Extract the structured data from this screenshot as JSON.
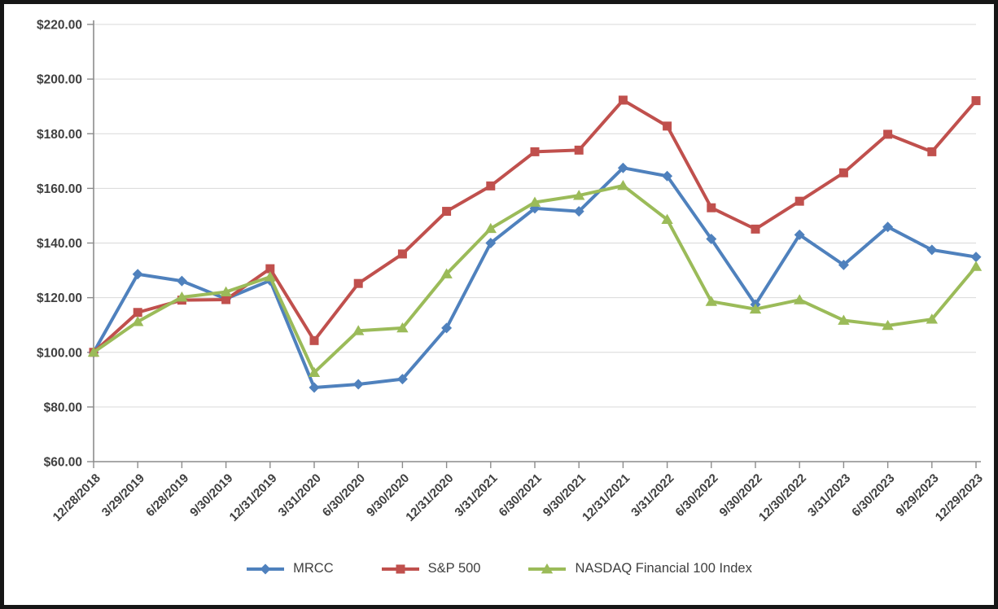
{
  "chart_data": {
    "type": "line",
    "title": "",
    "categories": [
      "12/28/2018",
      "3/29/2019",
      "6/28/2019",
      "9/30/2019",
      "12/31/2019",
      "3/31/2020",
      "6/30/2020",
      "9/30/2020",
      "12/31/2020",
      "3/31/2021",
      "6/30/2021",
      "9/30/2021",
      "12/31/2021",
      "3/31/2022",
      "6/30/2022",
      "9/30/2022",
      "12/30/2022",
      "3/31/2023",
      "6/30/2023",
      "9/29/2023",
      "12/29/2023"
    ],
    "series": [
      {
        "name": "MRCC",
        "color": "#4F81BD",
        "marker": "diamond",
        "values": [
          100.0,
          128.6,
          126.1,
          119.6,
          126.3,
          87.1,
          88.3,
          90.2,
          108.9,
          140.0,
          152.7,
          151.6,
          167.5,
          164.5,
          141.5,
          117.5,
          143.0,
          132.0,
          145.9,
          137.5,
          134.9
        ]
      },
      {
        "name": "S&P 500",
        "color": "#C0504D",
        "marker": "square",
        "values": [
          100.0,
          114.6,
          119.1,
          119.3,
          130.6,
          104.3,
          125.2,
          136.0,
          151.6,
          160.9,
          173.4,
          174.0,
          192.3,
          182.8,
          152.9,
          145.1,
          155.3,
          165.7,
          179.8,
          173.4,
          192.1
        ]
      },
      {
        "name": "NASDAQ Financial 100 Index",
        "color": "#9BBB59",
        "marker": "triangle",
        "values": [
          100.0,
          111.2,
          120.2,
          122.1,
          127.6,
          92.6,
          107.9,
          108.9,
          128.7,
          145.3,
          154.9,
          157.4,
          161.0,
          148.6,
          118.6,
          115.8,
          119.2,
          111.7,
          109.8,
          112.1,
          131.4
        ]
      }
    ],
    "ylim": [
      60,
      220
    ],
    "ytick_step": 20,
    "ytick_labels": [
      "$60.00",
      "$80.00",
      "$100.00",
      "$120.00",
      "$140.00",
      "$160.00",
      "$180.00",
      "$200.00",
      "$220.00"
    ],
    "xlabel": "",
    "ylabel": "",
    "grid": true,
    "legend_position": "bottom",
    "colors": {
      "grid_line": "#d9d9d9",
      "axis_line": "#8c8c8c",
      "label_text": "#404040",
      "frame_border": "#161616",
      "background": "#ffffff"
    }
  }
}
